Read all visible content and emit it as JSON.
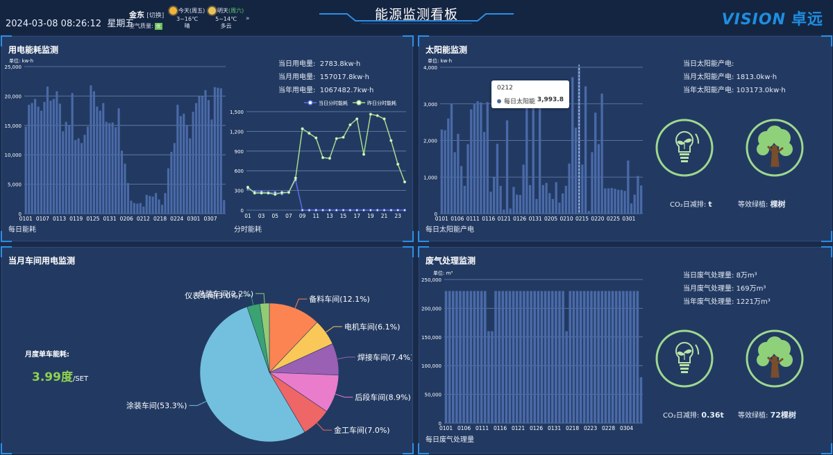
{
  "header": {
    "datetime": "2024-03-08 08:26:12",
    "weekday": "星期五",
    "location": "金东",
    "switch_label": "[切换]",
    "air_quality_label": "空气质量:",
    "air_quality_badge": "优",
    "today": {
      "label": "今天(周五)",
      "temp": "3~16℃",
      "cond": "晴"
    },
    "tomorrow": {
      "label": "明天",
      "aq": "(周六)",
      "temp": "5~14℃",
      "cond": "多云"
    },
    "more": "»",
    "title": "能源监测看板",
    "logo": "VISION",
    "logo_cn": "卓远"
  },
  "electric": {
    "title": "用电能耗监测",
    "unit": "单位: kw·h",
    "daily_label": "当日用电量:",
    "daily_value": "2783.8kw·h",
    "monthly_label": "当月用电量:",
    "monthly_value": "157017.8kw·h",
    "yearly_label": "当年用电量:",
    "yearly_value": "1067482.7kw·h",
    "daily_caption": "每日能耗",
    "hourly_caption": "分时能耗",
    "legend_today": "当日分时能耗",
    "legend_yesterday": "昨日分时能耗"
  },
  "solar": {
    "title": "太阳能监测",
    "unit": "单位: kw·h",
    "daily_label": "当日太阳能产电:",
    "daily_value": "",
    "monthly_label": "当月太阳能产电:",
    "monthly_value": "1813.0kw·h",
    "yearly_label": "当年太阳能产电:",
    "yearly_value": "103173.0kw·h",
    "caption": "每日太阳能产电",
    "tooltip_date": "0212",
    "tooltip_series": "每日太阳能",
    "tooltip_value": "3,993.8",
    "co2_label": "CO₂日减排:",
    "co2_value": "t",
    "tree_label": "等效绿植:",
    "tree_value": "棵树"
  },
  "workshop": {
    "title": "当月车间用电监测",
    "kpi_label": "月度单车能耗:",
    "kpi_value": "3.99度",
    "kpi_unit": "/SET"
  },
  "waste": {
    "title": "废气处理监测",
    "unit": "单位: m³",
    "daily_label": "当日废气处理量:",
    "daily_value": "8万m³",
    "monthly_label": "当月废气处理量:",
    "monthly_value": "169万m³",
    "yearly_label": "当年废气处理量:",
    "yearly_value": "1221万m³",
    "caption": "每日废气处理量",
    "co2_label": "CO₂日减排:",
    "co2_value": "0.36t",
    "tree_label": "等效绿植:",
    "tree_value": "72棵树"
  },
  "chart_data": [
    {
      "id": "elec_daily",
      "type": "bar",
      "ylim": [
        0,
        25000
      ],
      "yticks": [
        0,
        5000,
        10000,
        15000,
        20000,
        25000
      ],
      "ytick_labels": [
        "0",
        "5,000",
        "10,000",
        "15,000",
        "20,000",
        "25,000"
      ],
      "tick_labels": [
        "0101",
        "0107",
        "0113",
        "0119",
        "0125",
        "0131",
        "0206",
        "0212",
        "0218",
        "0224",
        "0301",
        "0307"
      ],
      "values": [
        14800,
        18500,
        18800,
        19500,
        18200,
        17500,
        19000,
        21600,
        19200,
        19500,
        20800,
        18700,
        14000,
        15600,
        15000,
        20500,
        12500,
        12800,
        12000,
        13400,
        14800,
        21800,
        20800,
        18200,
        17500,
        18800,
        15600,
        15400,
        15500,
        14700,
        17900,
        10700,
        8500,
        5200,
        2200,
        1800,
        1700,
        1800,
        1200,
        3200,
        3000,
        2900,
        3500,
        2400,
        1500,
        3500,
        7700,
        10500,
        12000,
        18500,
        16600,
        17000,
        15000,
        12800,
        17300,
        18800,
        20000,
        20000,
        21000,
        19300,
        16000,
        21500,
        21400,
        21300,
        2300
      ]
    },
    {
      "id": "elec_hourly",
      "type": "line",
      "ylim": [
        0,
        1500
      ],
      "yticks": [
        0,
        300,
        600,
        900,
        1200,
        1500
      ],
      "ytick_labels": [
        "0",
        "300",
        "600",
        "900",
        "1,200",
        "1,500"
      ],
      "x": [
        "01",
        "02",
        "03",
        "04",
        "05",
        "06",
        "07",
        "08",
        "09",
        "10",
        "11",
        "12",
        "13",
        "14",
        "15",
        "16",
        "17",
        "18",
        "19",
        "20",
        "21",
        "22",
        "23",
        "24"
      ],
      "tick_labels": [
        "01",
        "03",
        "05",
        "07",
        "09",
        "11",
        "13",
        "15",
        "17",
        "19",
        "21",
        "23"
      ],
      "series": [
        {
          "name": "当日分时能耗",
          "color": "#5b6ee1",
          "values": [
            330,
            280,
            280,
            270,
            270,
            250,
            280,
            460,
            0,
            0,
            0,
            0,
            0,
            0,
            0,
            0,
            0,
            0,
            0,
            0,
            0,
            0,
            0,
            0
          ]
        },
        {
          "name": "昨日分时能耗",
          "color": "#a6dc8c",
          "values": [
            350,
            260,
            260,
            260,
            240,
            270,
            270,
            490,
            1240,
            1170,
            1100,
            800,
            790,
            1090,
            1110,
            1300,
            1390,
            850,
            1460,
            1440,
            1390,
            1060,
            700,
            430
          ]
        }
      ]
    },
    {
      "id": "solar_daily",
      "type": "bar",
      "ylim": [
        0,
        4000
      ],
      "yticks": [
        0,
        1000,
        2000,
        3000,
        4000
      ],
      "ytick_labels": [
        "0",
        "1,000",
        "2,000",
        "3,000",
        "4,000"
      ],
      "tick_labels": [
        "0101",
        "0106",
        "0111",
        "0116",
        "0121",
        "0126",
        "0131",
        "0205",
        "0210",
        "0215",
        "0220",
        "0225",
        "0301"
      ],
      "highlight_index": 42,
      "values": [
        2300,
        2280,
        2600,
        3000,
        1680,
        2180,
        1300,
        760,
        1900,
        2850,
        3000,
        3070,
        3040,
        2230,
        3050,
        600,
        1000,
        1910,
        760,
        110,
        2550,
        140,
        730,
        520,
        510,
        1340,
        2980,
        780,
        3050,
        400,
        3200,
        780,
        840,
        560,
        400,
        860,
        300,
        550,
        760,
        1370,
        3730,
        2350,
        3994,
        1340,
        3480,
        70,
        1680,
        2760,
        1900,
        3280,
        690,
        690,
        700,
        680,
        650,
        650,
        620,
        1450,
        280,
        520,
        1030,
        770
      ]
    },
    {
      "id": "workshop_pie",
      "type": "pie",
      "series": [
        {
          "name": "备料车间",
          "pct": 12.1,
          "color": "#fc8452"
        },
        {
          "name": "电机车间",
          "pct": 6.1,
          "color": "#fac858"
        },
        {
          "name": "焊接车间",
          "pct": 7.4,
          "color": "#9a60b4"
        },
        {
          "name": "后段车间",
          "pct": 8.9,
          "color": "#ea7ccc"
        },
        {
          "name": "金工车间",
          "pct": 7.0,
          "color": "#ee6666"
        },
        {
          "name": "涂装车间",
          "pct": 53.3,
          "color": "#73c0de"
        },
        {
          "name": "仪表车间",
          "pct": 3.0,
          "color": "#3ba272"
        },
        {
          "name": "总装车间",
          "pct": 2.2,
          "color": "#91cc75"
        }
      ],
      "labels": [
        "备料车间(12.1%)",
        "电机车间(6.1%)",
        "焊接车间(7.4%)",
        "后段车间(8.9%)",
        "金工车间(7.0%)",
        "涂装车间(53.3%)",
        "仪表车间(3.0%)",
        "总装车间(2.2%)"
      ]
    },
    {
      "id": "waste_daily",
      "type": "bar",
      "ylim": [
        0,
        250000
      ],
      "yticks": [
        0,
        50000,
        100000,
        150000,
        200000,
        250000
      ],
      "ytick_labels": [
        "0",
        "50,000",
        "100,000",
        "150,000",
        "200,000",
        "250,000"
      ],
      "tick_labels": [
        "0101",
        "0106",
        "0111",
        "0116",
        "0121",
        "0126",
        "0131",
        "0218",
        "0223",
        "0228",
        "0304"
      ],
      "values": [
        230000,
        230000,
        230000,
        230000,
        230000,
        230000,
        230000,
        230000,
        230000,
        230000,
        230000,
        230000,
        160000,
        160000,
        230000,
        230000,
        230000,
        230000,
        230000,
        230000,
        230000,
        230000,
        230000,
        230000,
        230000,
        230000,
        230000,
        230000,
        230000,
        230000,
        230000,
        230000,
        230000,
        230000,
        160000,
        230000,
        230000,
        230000,
        230000,
        230000,
        230000,
        230000,
        230000,
        230000,
        230000,
        230000,
        230000,
        230000,
        230000,
        230000,
        230000,
        230000,
        230000,
        230000,
        230000,
        80000
      ]
    }
  ]
}
